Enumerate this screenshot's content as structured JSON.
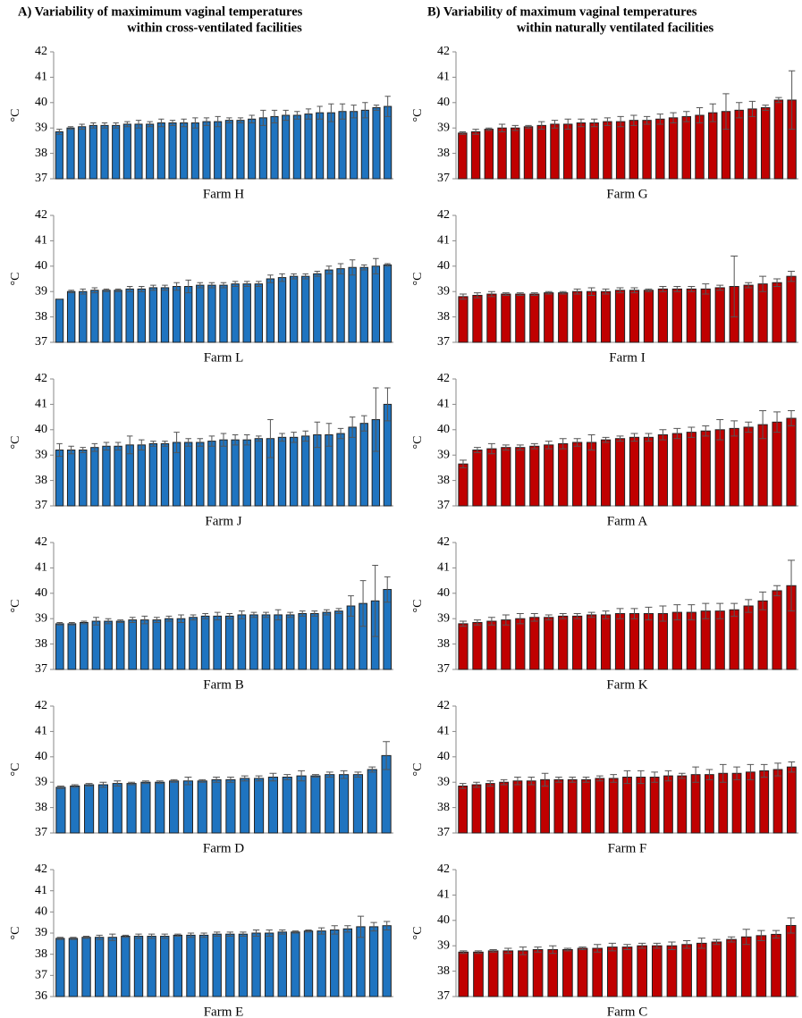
{
  "figure_titles": [
    [
      "A) Variability of maximimum vaginal temperatures",
      "within cross-ventilated facilities"
    ],
    [
      "B) Variability of maximum vaginal temperatures",
      "within naturally ventilated facilities"
    ]
  ],
  "chart_data": [
    {
      "type": "bar",
      "xlabel": "Farm H",
      "ylabel": "°C",
      "color": "#1f74c0",
      "ylim": [
        37,
        42
      ],
      "yticks": [
        37,
        38,
        39,
        40,
        41,
        42
      ],
      "values": [
        38.85,
        39.0,
        39.05,
        39.1,
        39.1,
        39.1,
        39.15,
        39.15,
        39.15,
        39.2,
        39.2,
        39.2,
        39.2,
        39.25,
        39.25,
        39.3,
        39.3,
        39.35,
        39.4,
        39.45,
        39.5,
        39.5,
        39.55,
        39.6,
        39.6,
        39.65,
        39.65,
        39.7,
        39.8,
        39.85
      ],
      "errors": [
        0.1,
        0.05,
        0.1,
        0.1,
        0.1,
        0.1,
        0.1,
        0.15,
        0.1,
        0.15,
        0.1,
        0.15,
        0.2,
        0.15,
        0.2,
        0.1,
        0.1,
        0.15,
        0.3,
        0.25,
        0.2,
        0.15,
        0.2,
        0.25,
        0.35,
        0.3,
        0.25,
        0.3,
        0.1,
        0.4
      ]
    },
    {
      "type": "bar",
      "xlabel": "Farm L",
      "ylabel": "°C",
      "color": "#1f74c0",
      "ylim": [
        37,
        42
      ],
      "yticks": [
        37,
        38,
        39,
        40,
        41,
        42
      ],
      "values": [
        38.7,
        39.0,
        39.0,
        39.05,
        39.05,
        39.05,
        39.1,
        39.1,
        39.15,
        39.15,
        39.2,
        39.2,
        39.25,
        39.25,
        39.25,
        39.3,
        39.3,
        39.3,
        39.5,
        39.55,
        39.6,
        39.6,
        39.7,
        39.85,
        39.9,
        39.95,
        39.95,
        40.0,
        40.05
      ],
      "errors": [
        0,
        0.05,
        0.1,
        0.1,
        0.05,
        0.05,
        0.1,
        0.1,
        0.1,
        0.1,
        0.15,
        0.25,
        0.1,
        0.1,
        0.1,
        0.1,
        0.1,
        0.1,
        0.15,
        0.15,
        0.1,
        0.1,
        0.1,
        0.15,
        0.2,
        0.3,
        0.1,
        0.3,
        0.05
      ]
    },
    {
      "type": "bar",
      "xlabel": "Farm J",
      "ylabel": "°C",
      "color": "#1f74c0",
      "ylim": [
        37,
        42
      ],
      "yticks": [
        37,
        38,
        39,
        40,
        41,
        42
      ],
      "values": [
        39.2,
        39.2,
        39.2,
        39.3,
        39.35,
        39.35,
        39.4,
        39.4,
        39.45,
        39.45,
        39.5,
        39.5,
        39.5,
        39.55,
        39.6,
        39.6,
        39.6,
        39.65,
        39.65,
        39.7,
        39.7,
        39.75,
        39.8,
        39.8,
        39.85,
        40.1,
        40.25,
        40.4,
        41.0
      ],
      "errors": [
        0.25,
        0.15,
        0.1,
        0.15,
        0.15,
        0.15,
        0.35,
        0.2,
        0.1,
        0.1,
        0.4,
        0.15,
        0.15,
        0.2,
        0.25,
        0.2,
        0.2,
        0.1,
        0.75,
        0.15,
        0.2,
        0.2,
        0.5,
        0.45,
        0.2,
        0.4,
        0.3,
        1.25,
        0.65
      ]
    },
    {
      "type": "bar",
      "xlabel": "Farm B",
      "ylabel": "°C",
      "color": "#1f74c0",
      "ylim": [
        37,
        42
      ],
      "yticks": [
        37,
        38,
        39,
        40,
        41,
        42
      ],
      "values": [
        38.8,
        38.8,
        38.85,
        38.9,
        38.9,
        38.9,
        38.95,
        38.95,
        38.95,
        39.0,
        39.0,
        39.05,
        39.1,
        39.1,
        39.1,
        39.15,
        39.15,
        39.15,
        39.15,
        39.15,
        39.2,
        39.2,
        39.25,
        39.3,
        39.5,
        39.6,
        39.7,
        40.15
      ],
      "errors": [
        0.05,
        0.05,
        0.05,
        0.15,
        0.1,
        0.05,
        0.1,
        0.15,
        0.1,
        0.1,
        0.15,
        0.1,
        0.1,
        0.15,
        0.1,
        0.15,
        0.1,
        0.1,
        0.2,
        0.1,
        0.1,
        0.1,
        0.1,
        0.1,
        0.4,
        0.9,
        1.4,
        0.5
      ]
    },
    {
      "type": "bar",
      "xlabel": "Farm D",
      "ylabel": "°C",
      "color": "#1f74c0",
      "ylim": [
        37,
        42
      ],
      "yticks": [
        37,
        38,
        39,
        40,
        41,
        42
      ],
      "values": [
        38.8,
        38.85,
        38.9,
        38.9,
        38.95,
        38.95,
        39.0,
        39.0,
        39.05,
        39.05,
        39.05,
        39.1,
        39.1,
        39.15,
        39.15,
        39.2,
        39.2,
        39.25,
        39.25,
        39.3,
        39.3,
        39.3,
        39.5,
        40.05
      ],
      "errors": [
        0.05,
        0.05,
        0.05,
        0.1,
        0.1,
        0.05,
        0.05,
        0.05,
        0.05,
        0.15,
        0.05,
        0.1,
        0.1,
        0.1,
        0.1,
        0.15,
        0.1,
        0.2,
        0.05,
        0.1,
        0.15,
        0.1,
        0.1,
        0.55
      ]
    },
    {
      "type": "bar",
      "xlabel": "Farm E",
      "ylabel": "°C",
      "color": "#1f74c0",
      "ylim": [
        36,
        42
      ],
      "yticks": [
        36,
        37,
        38,
        39,
        40,
        41,
        42
      ],
      "values": [
        38.75,
        38.75,
        38.8,
        38.8,
        38.8,
        38.85,
        38.85,
        38.85,
        38.85,
        38.9,
        38.9,
        38.9,
        38.95,
        38.95,
        38.95,
        39.0,
        39.0,
        39.05,
        39.05,
        39.1,
        39.1,
        39.15,
        39.2,
        39.3,
        39.3,
        39.35
      ],
      "errors": [
        0.05,
        0.05,
        0.05,
        0.1,
        0.15,
        0.05,
        0.1,
        0.1,
        0.1,
        0.05,
        0.1,
        0.1,
        0.1,
        0.1,
        0.1,
        0.15,
        0.15,
        0.1,
        0.05,
        0.05,
        0.15,
        0.2,
        0.15,
        0.5,
        0.2,
        0.2
      ]
    },
    {
      "type": "bar",
      "xlabel": "Farm G",
      "ylabel": "°C",
      "color": "#c00000",
      "ylim": [
        37,
        42
      ],
      "yticks": [
        37,
        38,
        39,
        40,
        41,
        42
      ],
      "values": [
        38.8,
        38.85,
        38.95,
        39.0,
        39.0,
        39.05,
        39.1,
        39.15,
        39.15,
        39.2,
        39.2,
        39.25,
        39.25,
        39.3,
        39.3,
        39.35,
        39.4,
        39.45,
        39.5,
        39.6,
        39.65,
        39.7,
        39.75,
        39.8,
        40.1,
        40.1
      ],
      "errors": [
        0.05,
        0.1,
        0.05,
        0.15,
        0.1,
        0.05,
        0.15,
        0.15,
        0.2,
        0.15,
        0.15,
        0.15,
        0.2,
        0.2,
        0.15,
        0.2,
        0.2,
        0.2,
        0.3,
        0.35,
        0.7,
        0.3,
        0.3,
        0.1,
        0.1,
        1.15
      ]
    },
    {
      "type": "bar",
      "xlabel": "Farm I",
      "ylabel": "°C",
      "color": "#c00000",
      "ylim": [
        37,
        42
      ],
      "yticks": [
        37,
        38,
        39,
        40,
        41,
        42
      ],
      "values": [
        38.8,
        38.85,
        38.9,
        38.9,
        38.9,
        38.9,
        38.95,
        38.95,
        39.0,
        39.0,
        39.0,
        39.05,
        39.05,
        39.05,
        39.1,
        39.1,
        39.1,
        39.1,
        39.15,
        39.2,
        39.25,
        39.3,
        39.35,
        39.6
      ],
      "errors": [
        0.1,
        0.1,
        0.1,
        0.05,
        0.05,
        0.05,
        0.05,
        0.05,
        0.1,
        0.15,
        0.1,
        0.1,
        0.1,
        0.05,
        0.1,
        0.1,
        0.1,
        0.2,
        0.1,
        1.2,
        0.1,
        0.3,
        0.15,
        0.2
      ]
    },
    {
      "type": "bar",
      "xlabel": "Farm A",
      "ylabel": "°C",
      "color": "#c00000",
      "ylim": [
        37,
        42
      ],
      "yticks": [
        37,
        38,
        39,
        40,
        41,
        42
      ],
      "values": [
        38.65,
        39.2,
        39.25,
        39.3,
        39.3,
        39.35,
        39.4,
        39.45,
        39.5,
        39.5,
        39.6,
        39.65,
        39.7,
        39.7,
        39.8,
        39.85,
        39.9,
        39.95,
        40.0,
        40.05,
        40.1,
        40.2,
        40.3,
        40.45
      ],
      "errors": [
        0.15,
        0.1,
        0.2,
        0.1,
        0.1,
        0.1,
        0.15,
        0.2,
        0.15,
        0.3,
        0.1,
        0.1,
        0.15,
        0.15,
        0.2,
        0.2,
        0.2,
        0.2,
        0.4,
        0.3,
        0.2,
        0.55,
        0.4,
        0.3
      ]
    },
    {
      "type": "bar",
      "xlabel": "Farm K",
      "ylabel": "°C",
      "color": "#c00000",
      "ylim": [
        37,
        42
      ],
      "yticks": [
        37,
        38,
        39,
        40,
        41,
        42
      ],
      "values": [
        38.8,
        38.85,
        38.9,
        38.95,
        39.0,
        39.05,
        39.05,
        39.1,
        39.1,
        39.15,
        39.15,
        39.2,
        39.2,
        39.2,
        39.2,
        39.25,
        39.25,
        39.3,
        39.3,
        39.35,
        39.5,
        39.7,
        40.1,
        40.3
      ],
      "errors": [
        0.1,
        0.1,
        0.15,
        0.2,
        0.2,
        0.15,
        0.1,
        0.1,
        0.1,
        0.1,
        0.15,
        0.2,
        0.2,
        0.25,
        0.3,
        0.3,
        0.3,
        0.3,
        0.3,
        0.25,
        0.25,
        0.35,
        0.2,
        1.0
      ]
    },
    {
      "type": "bar",
      "xlabel": "Farm F",
      "ylabel": "°C",
      "color": "#c00000",
      "ylim": [
        37,
        42
      ],
      "yticks": [
        37,
        38,
        39,
        40,
        41,
        42
      ],
      "values": [
        38.85,
        38.9,
        38.95,
        39.0,
        39.05,
        39.05,
        39.1,
        39.1,
        39.1,
        39.1,
        39.15,
        39.15,
        39.2,
        39.2,
        39.2,
        39.25,
        39.25,
        39.3,
        39.3,
        39.35,
        39.35,
        39.4,
        39.45,
        39.5,
        39.6
      ],
      "errors": [
        0.1,
        0.1,
        0.1,
        0.1,
        0.15,
        0.15,
        0.25,
        0.1,
        0.1,
        0.1,
        0.1,
        0.15,
        0.25,
        0.25,
        0.2,
        0.2,
        0.1,
        0.3,
        0.2,
        0.35,
        0.25,
        0.3,
        0.25,
        0.25,
        0.2
      ]
    },
    {
      "type": "bar",
      "xlabel": "Farm C",
      "ylabel": "°C",
      "color": "#c00000",
      "ylim": [
        37,
        42
      ],
      "yticks": [
        37,
        38,
        39,
        40,
        41,
        42
      ],
      "values": [
        38.75,
        38.75,
        38.8,
        38.8,
        38.8,
        38.85,
        38.85,
        38.85,
        38.9,
        38.9,
        38.95,
        38.95,
        39.0,
        39.0,
        39.0,
        39.05,
        39.1,
        39.15,
        39.25,
        39.35,
        39.4,
        39.45,
        39.8
      ],
      "errors": [
        0.05,
        0.05,
        0.05,
        0.1,
        0.15,
        0.1,
        0.15,
        0.05,
        0.05,
        0.15,
        0.15,
        0.1,
        0.1,
        0.1,
        0.15,
        0.15,
        0.2,
        0.1,
        0.1,
        0.3,
        0.2,
        0.15,
        0.3
      ]
    }
  ]
}
